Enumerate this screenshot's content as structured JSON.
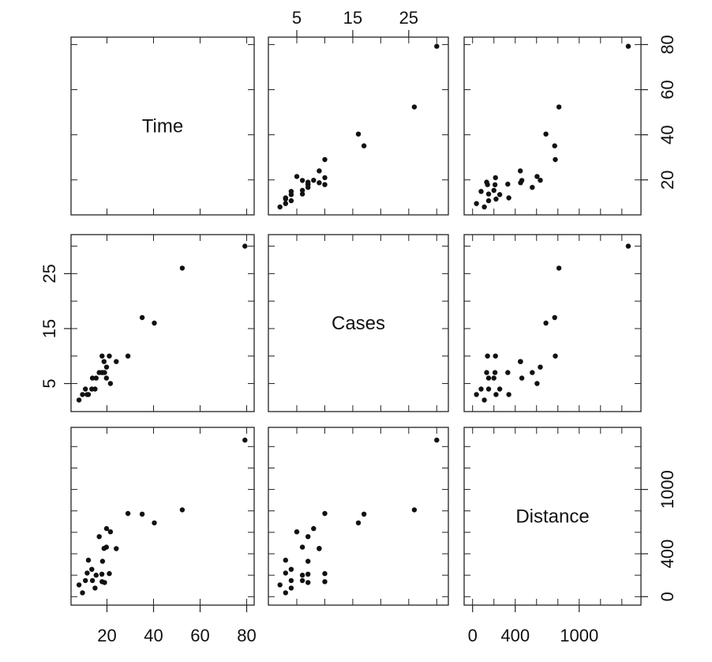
{
  "chart_data": {
    "type": "scatter",
    "layout": "scatterplot-matrix",
    "variables": [
      "Time",
      "Cases",
      "Distance"
    ],
    "ranges": {
      "Time": [
        7.29,
        80.5
      ],
      "Cases": [
        1.05,
        30.95
      ],
      "Distance": [
        -20,
        1520
      ]
    },
    "ticks": {
      "Time": [
        20,
        40,
        60,
        80
      ],
      "Cases": [
        5,
        15,
        25
      ],
      "Distance": [
        0,
        400,
        1000
      ]
    },
    "minor_ticks": {
      "Time": [
        20,
        40,
        60,
        80
      ],
      "Cases": [
        5,
        10,
        15,
        20,
        25,
        30
      ],
      "Distance": [
        0,
        200,
        400,
        600,
        800,
        1000,
        1200,
        1400
      ]
    },
    "observations": [
      {
        "Time": 16.68,
        "Cases": 7,
        "Distance": 560
      },
      {
        "Time": 11.5,
        "Cases": 3,
        "Distance": 220
      },
      {
        "Time": 12.03,
        "Cases": 3,
        "Distance": 340
      },
      {
        "Time": 14.88,
        "Cases": 4,
        "Distance": 80
      },
      {
        "Time": 13.75,
        "Cases": 6,
        "Distance": 150
      },
      {
        "Time": 18.11,
        "Cases": 7,
        "Distance": 330
      },
      {
        "Time": 8.0,
        "Cases": 2,
        "Distance": 110
      },
      {
        "Time": 17.83,
        "Cases": 7,
        "Distance": 210
      },
      {
        "Time": 79.24,
        "Cases": 30,
        "Distance": 1460
      },
      {
        "Time": 21.5,
        "Cases": 5,
        "Distance": 605
      },
      {
        "Time": 40.33,
        "Cases": 16,
        "Distance": 688
      },
      {
        "Time": 21.0,
        "Cases": 10,
        "Distance": 215
      },
      {
        "Time": 13.5,
        "Cases": 4,
        "Distance": 255
      },
      {
        "Time": 19.75,
        "Cases": 6,
        "Distance": 462
      },
      {
        "Time": 24.0,
        "Cases": 9,
        "Distance": 448
      },
      {
        "Time": 29.0,
        "Cases": 10,
        "Distance": 776
      },
      {
        "Time": 15.35,
        "Cases": 6,
        "Distance": 200
      },
      {
        "Time": 19.0,
        "Cases": 7,
        "Distance": 132
      },
      {
        "Time": 9.5,
        "Cases": 3,
        "Distance": 36
      },
      {
        "Time": 35.1,
        "Cases": 17,
        "Distance": 770
      },
      {
        "Time": 17.9,
        "Cases": 10,
        "Distance": 140
      },
      {
        "Time": 52.32,
        "Cases": 26,
        "Distance": 810
      },
      {
        "Time": 18.75,
        "Cases": 9,
        "Distance": 450
      },
      {
        "Time": 19.83,
        "Cases": 8,
        "Distance": 635
      },
      {
        "Time": 10.75,
        "Cases": 4,
        "Distance": 150
      }
    ],
    "point_color": "#111111",
    "panel_border_color": "#222222",
    "grid": false
  }
}
